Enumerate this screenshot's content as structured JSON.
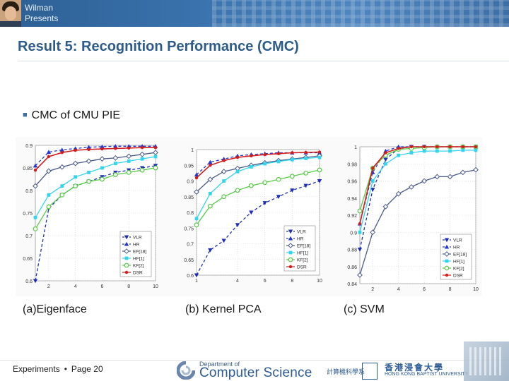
{
  "header": {
    "presenter_name": "Wilman",
    "presenter_sub": "Presents"
  },
  "slide": {
    "title": "Result 5: Recognition Performance (CMC)",
    "bullet": "CMC of CMU PIE",
    "captions": [
      "(a)Eigenface",
      "(b) Kernel PCA",
      "(c)  SVM"
    ]
  },
  "footer": {
    "section": "Experiments",
    "page": "Page 20",
    "dept_small": "Department of",
    "dept_big": "Computer Science",
    "dept_chinese": "計算機科學系",
    "univ_cn": "香港浸會大學",
    "univ_en": "HONG KONG BAPTIST UNIVERSITY"
  },
  "colors": {
    "VLR": "#1f2fb5",
    "HR": "#2238d0",
    "EF": "#4a5a8a",
    "HF": "#33d5ee",
    "KF": "#55cc44",
    "DSR": "#d31c1c"
  },
  "chart_data": [
    {
      "type": "line",
      "title": "(a)Eigenface",
      "x": [
        1,
        2,
        3,
        4,
        5,
        6,
        7,
        8,
        9,
        10
      ],
      "ylim": [
        0.6,
        0.9
      ],
      "yticks": [
        "0.6",
        "0.65",
        "0.7",
        "0.75",
        "0.8",
        "0.85",
        "0.9"
      ],
      "xticks": [
        "2",
        "4",
        "6",
        "8",
        "10"
      ],
      "legend": [
        "VLR",
        "HR",
        "EF[18]",
        "HF[1]",
        "KF[2]",
        "DSR"
      ],
      "legend_position": "bottom-right",
      "series": [
        {
          "name": "VLR",
          "values": [
            0.6,
            0.76,
            0.79,
            0.81,
            0.82,
            0.83,
            0.84,
            0.845,
            0.85,
            0.855
          ]
        },
        {
          "name": "HR",
          "values": [
            0.855,
            0.885,
            0.89,
            0.893,
            0.896,
            0.897,
            0.898,
            0.898,
            0.898,
            0.898
          ]
        },
        {
          "name": "EF[18]",
          "values": [
            0.81,
            0.843,
            0.852,
            0.86,
            0.865,
            0.87,
            0.872,
            0.876,
            0.88,
            0.884
          ]
        },
        {
          "name": "HF[1]",
          "values": [
            0.74,
            0.79,
            0.81,
            0.83,
            0.84,
            0.85,
            0.86,
            0.865,
            0.87,
            0.875
          ]
        },
        {
          "name": "KF[2]",
          "values": [
            0.715,
            0.764,
            0.79,
            0.81,
            0.82,
            0.825,
            0.835,
            0.84,
            0.845,
            0.85
          ]
        },
        {
          "name": "DSR",
          "values": [
            0.845,
            0.875,
            0.884,
            0.889,
            0.891,
            0.892,
            0.893,
            0.894,
            0.895,
            0.895
          ]
        }
      ]
    },
    {
      "type": "line",
      "title": "(b) Kernel PCA",
      "x": [
        1,
        2,
        3,
        4,
        5,
        6,
        7,
        8,
        9,
        10
      ],
      "ylim": [
        0.6,
        1.0
      ],
      "yticks": [
        "0.6",
        "0.65",
        "0.7",
        "0.75",
        "0.8",
        "0.85",
        "0.9",
        "0.95",
        "1"
      ],
      "xticks": [
        "1",
        "4",
        "6",
        "8",
        "10"
      ],
      "legend": [
        "VLR",
        "HR",
        "EF[18]",
        "HF[1]",
        "KF[2]",
        "DSR"
      ],
      "legend_position": "bottom-right",
      "series": [
        {
          "name": "VLR",
          "values": [
            0.6,
            0.68,
            0.71,
            0.76,
            0.8,
            0.83,
            0.85,
            0.87,
            0.885,
            0.9
          ]
        },
        {
          "name": "HR",
          "values": [
            0.92,
            0.96,
            0.97,
            0.98,
            0.984,
            0.987,
            0.99,
            0.99,
            0.99,
            0.99
          ]
        },
        {
          "name": "EF[18]",
          "values": [
            0.865,
            0.905,
            0.93,
            0.94,
            0.95,
            0.958,
            0.965,
            0.97,
            0.975,
            0.98
          ]
        },
        {
          "name": "HF[1]",
          "values": [
            0.78,
            0.86,
            0.9,
            0.93,
            0.945,
            0.955,
            0.962,
            0.968,
            0.972,
            0.975
          ]
        },
        {
          "name": "KF[2]",
          "values": [
            0.76,
            0.82,
            0.85,
            0.87,
            0.885,
            0.895,
            0.905,
            0.915,
            0.925,
            0.935
          ]
        },
        {
          "name": "DSR",
          "values": [
            0.91,
            0.95,
            0.965,
            0.975,
            0.98,
            0.984,
            0.987,
            0.99,
            0.991,
            0.992
          ]
        }
      ]
    },
    {
      "type": "line",
      "title": "(c)  SVM",
      "x": [
        1,
        2,
        3,
        4,
        5,
        6,
        7,
        8,
        9,
        10
      ],
      "ylim": [
        0.84,
        1.0
      ],
      "yticks": [
        "0.84",
        "0.86",
        "0.88",
        "0.9",
        "0.92",
        "0.94",
        "0.96",
        "0.98",
        "1"
      ],
      "xticks": [
        "2",
        "4",
        "6",
        "8",
        "10"
      ],
      "legend": [
        "VLR",
        "HR",
        "EF[18]",
        "HF[1]",
        "KF[2]",
        "DSR"
      ],
      "legend_position": "bottom-right",
      "series": [
        {
          "name": "VLR",
          "values": [
            0.88,
            0.95,
            0.985,
            0.998,
            1,
            1,
            1,
            1,
            1,
            1
          ]
        },
        {
          "name": "HR",
          "values": [
            0.91,
            0.97,
            0.995,
            1,
            1,
            1,
            1,
            1,
            1,
            1
          ]
        },
        {
          "name": "EF[18]",
          "values": [
            0.85,
            0.9,
            0.93,
            0.945,
            0.953,
            0.96,
            0.965,
            0.965,
            0.97,
            0.973
          ]
        },
        {
          "name": "HF[1]",
          "values": [
            0.9,
            0.96,
            0.98,
            0.99,
            0.993,
            0.995,
            0.995,
            0.995,
            0.996,
            0.996
          ]
        },
        {
          "name": "KF[2]",
          "values": [
            0.925,
            0.975,
            0.99,
            0.997,
            0.998,
            0.999,
            1,
            1,
            1,
            1
          ]
        },
        {
          "name": "DSR",
          "values": [
            0.91,
            0.975,
            0.993,
            0.998,
            1,
            1,
            1,
            1,
            1,
            1
          ]
        }
      ]
    }
  ]
}
